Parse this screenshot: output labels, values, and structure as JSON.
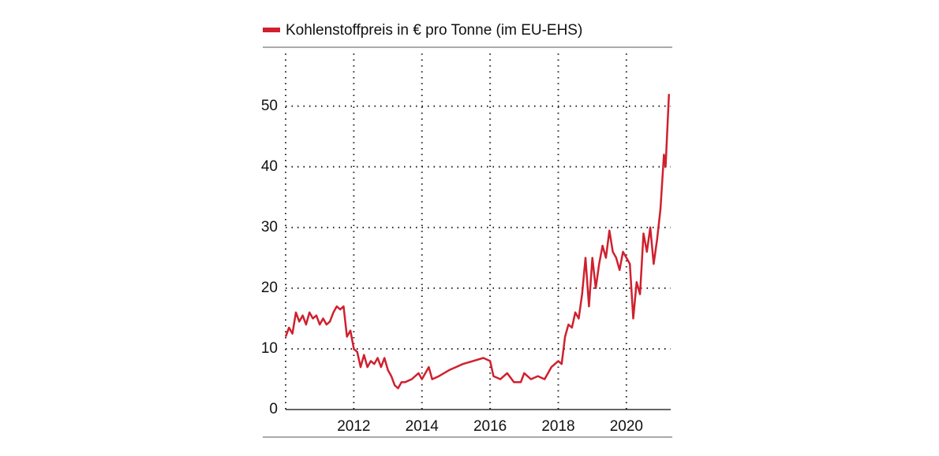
{
  "chart_data": {
    "type": "line",
    "x": [
      2010.0,
      2010.1,
      2010.2,
      2010.3,
      2010.4,
      2010.5,
      2010.6,
      2010.7,
      2010.8,
      2010.9,
      2011.0,
      2011.1,
      2011.2,
      2011.3,
      2011.4,
      2011.5,
      2011.6,
      2011.7,
      2011.8,
      2011.9,
      2012.0,
      2012.1,
      2012.2,
      2012.3,
      2012.4,
      2012.5,
      2012.6,
      2012.7,
      2012.8,
      2012.9,
      2013.0,
      2013.1,
      2013.2,
      2013.3,
      2013.4,
      2013.5,
      2013.7,
      2013.9,
      2014.0,
      2014.2,
      2014.3,
      2014.5,
      2014.8,
      2015.0,
      2015.2,
      2015.5,
      2015.8,
      2016.0,
      2016.1,
      2016.3,
      2016.5,
      2016.7,
      2016.9,
      2017.0,
      2017.2,
      2017.4,
      2017.6,
      2017.8,
      2018.0,
      2018.1,
      2018.2,
      2018.3,
      2018.4,
      2018.5,
      2018.6,
      2018.7,
      2018.8,
      2018.9,
      2019.0,
      2019.1,
      2019.2,
      2019.3,
      2019.4,
      2019.5,
      2019.6,
      2019.7,
      2019.8,
      2019.9,
      2020.0,
      2020.1,
      2020.2,
      2020.3,
      2020.4,
      2020.5,
      2020.6,
      2020.7,
      2020.8,
      2020.9,
      2021.0,
      2021.1,
      2021.15,
      2021.25
    ],
    "series": [
      {
        "name": "Kohlenstoffpreis in € pro Tonne (im EU-EHS)",
        "color": "#d0202e",
        "values": [
          12,
          13.5,
          12.5,
          16,
          14.5,
          15.5,
          14,
          16,
          15,
          15.5,
          14,
          15,
          14,
          14.5,
          16,
          17,
          16.5,
          17,
          12,
          13,
          10,
          9.5,
          7,
          9,
          7,
          8,
          7.5,
          8.5,
          7,
          8.5,
          6.5,
          5.5,
          4,
          3.5,
          4.5,
          4.5,
          5,
          6,
          5,
          7,
          5,
          5.5,
          6.5,
          7,
          7.5,
          8,
          8.5,
          8,
          5.5,
          5,
          6,
          4.5,
          4.5,
          6,
          5,
          5.5,
          5,
          7,
          8,
          7.5,
          12,
          14,
          13.5,
          16,
          15,
          19,
          25,
          17,
          25,
          20,
          24,
          27,
          25,
          29.5,
          26,
          25,
          23,
          26,
          25,
          24,
          15,
          21,
          19,
          29,
          26,
          30,
          24,
          28,
          33,
          42,
          40,
          52
        ]
      }
    ],
    "xlim": [
      2010.0,
      2021.3
    ],
    "xticks": [
      2012,
      2014,
      2016,
      2018,
      2020
    ],
    "ylim": [
      0,
      59.7
    ],
    "yticks": [
      0,
      10,
      20,
      30,
      40,
      50
    ],
    "grid": true
  }
}
